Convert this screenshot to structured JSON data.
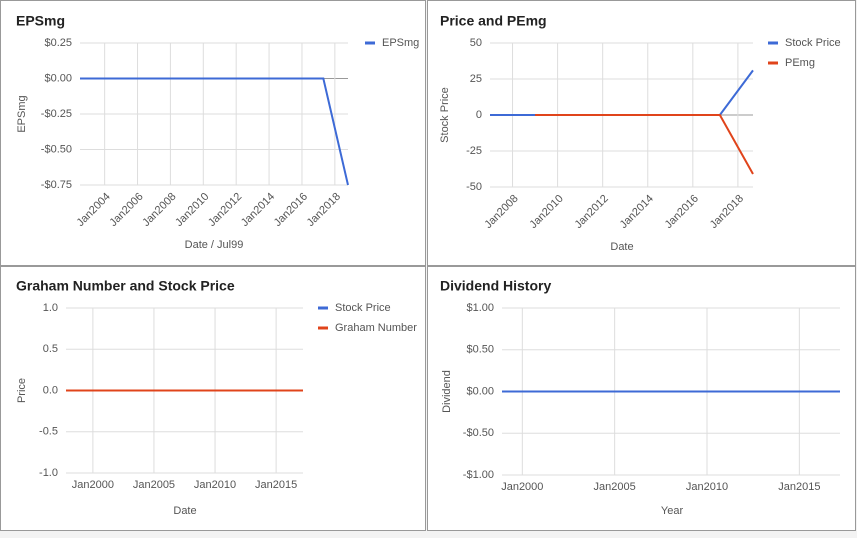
{
  "chart_data": [
    {
      "type": "line",
      "title": "EPSmg",
      "xlabel": "Date / Jul99",
      "ylabel": "EPSmg",
      "x": [
        2002.5,
        2017.3,
        2018.8
      ],
      "series": [
        {
          "name": "EPSmg",
          "color": "#3d6ad6",
          "values": [
            0,
            0,
            -0.75
          ]
        }
      ],
      "xlim": [
        2002.5,
        2018.8
      ],
      "xticks": [
        {
          "value": 2004,
          "label": "Jan2004"
        },
        {
          "value": 2006,
          "label": "Jan2006"
        },
        {
          "value": 2008,
          "label": "Jan2008"
        },
        {
          "value": 2010,
          "label": "Jan2010"
        },
        {
          "value": 2012,
          "label": "Jan2012"
        },
        {
          "value": 2014,
          "label": "Jan2014"
        },
        {
          "value": 2016,
          "label": "Jan2016"
        },
        {
          "value": 2018,
          "label": "Jan2018"
        }
      ],
      "xtick_rotation": -45,
      "ylim": [
        -0.75,
        0.25
      ],
      "yticks": [
        {
          "value": 0.25,
          "label": "$0.25"
        },
        {
          "value": 0,
          "label": "$0.00"
        },
        {
          "value": -0.25,
          "label": "-$0.25"
        },
        {
          "value": -0.5,
          "label": "-$0.50"
        },
        {
          "value": -0.75,
          "label": "-$0.75"
        }
      ],
      "grid": true,
      "legend": "right"
    },
    {
      "type": "line",
      "title": "Price and PEmg",
      "xlabel": "Date",
      "ylabel": "Stock Price",
      "x": [
        2007,
        2009,
        2017.2,
        2018.67
      ],
      "series": [
        {
          "name": "Stock Price",
          "color": "#3d6ad6",
          "values": [
            0,
            0,
            0,
            31
          ]
        },
        {
          "name": "PEmg",
          "color": "#e0441b",
          "values": [
            null,
            0,
            0,
            -41
          ]
        }
      ],
      "xlim": [
        2007,
        2018.67
      ],
      "xticks": [
        {
          "value": 2008,
          "label": "Jan2008"
        },
        {
          "value": 2010,
          "label": "Jan2010"
        },
        {
          "value": 2012,
          "label": "Jan2012"
        },
        {
          "value": 2014,
          "label": "Jan2014"
        },
        {
          "value": 2016,
          "label": "Jan2016"
        },
        {
          "value": 2018,
          "label": "Jan2018"
        }
      ],
      "xtick_rotation": -45,
      "ylim": [
        -50,
        50
      ],
      "yticks": [
        50,
        25,
        0,
        -25,
        -50
      ],
      "grid": true,
      "legend": "right"
    },
    {
      "type": "line",
      "title": "Graham Number and Stock Price",
      "xlabel": "Date",
      "ylabel": "Price",
      "x": [
        1997.8,
        2017.2
      ],
      "series": [
        {
          "name": "Stock Price",
          "color": "#3d6ad6",
          "values": [
            0,
            0
          ]
        },
        {
          "name": "Graham Number",
          "color": "#e0441b",
          "values": [
            0,
            0
          ]
        }
      ],
      "xlim": [
        1997.8,
        2017.2
      ],
      "xticks": [
        {
          "value": 2000,
          "label": "Jan2000"
        },
        {
          "value": 2005,
          "label": "Jan2005"
        },
        {
          "value": 2010,
          "label": "Jan2010"
        },
        {
          "value": 2015,
          "label": "Jan2015"
        }
      ],
      "ylim": [
        -1,
        1
      ],
      "yticks": [
        {
          "value": 1,
          "label": "1.0"
        },
        {
          "value": 0.5,
          "label": "0.5"
        },
        {
          "value": 0,
          "label": "0.0"
        },
        {
          "value": -0.5,
          "label": "-0.5"
        },
        {
          "value": -1,
          "label": "-1.0"
        }
      ],
      "grid": true,
      "legend": "right"
    },
    {
      "type": "line",
      "title": "Dividend History",
      "xlabel": "Year",
      "ylabel": "Dividend",
      "x": [
        1998.9,
        2017.2
      ],
      "series": [
        {
          "name": "Dividend",
          "color": "#3d6ad6",
          "values": [
            0,
            0
          ]
        }
      ],
      "xlim": [
        1998.9,
        2017.2
      ],
      "xticks": [
        {
          "value": 2000,
          "label": "Jan2000"
        },
        {
          "value": 2005,
          "label": "Jan2005"
        },
        {
          "value": 2010,
          "label": "Jan2010"
        },
        {
          "value": 2015,
          "label": "Jan2015"
        }
      ],
      "ylim": [
        -1,
        1
      ],
      "yticks": [
        {
          "value": 1,
          "label": "$1.00"
        },
        {
          "value": 0.5,
          "label": "$0.50"
        },
        {
          "value": 0,
          "label": "$0.00"
        },
        {
          "value": -0.5,
          "label": "-$0.50"
        },
        {
          "value": -1,
          "label": "-$1.00"
        }
      ],
      "grid": true
    }
  ]
}
